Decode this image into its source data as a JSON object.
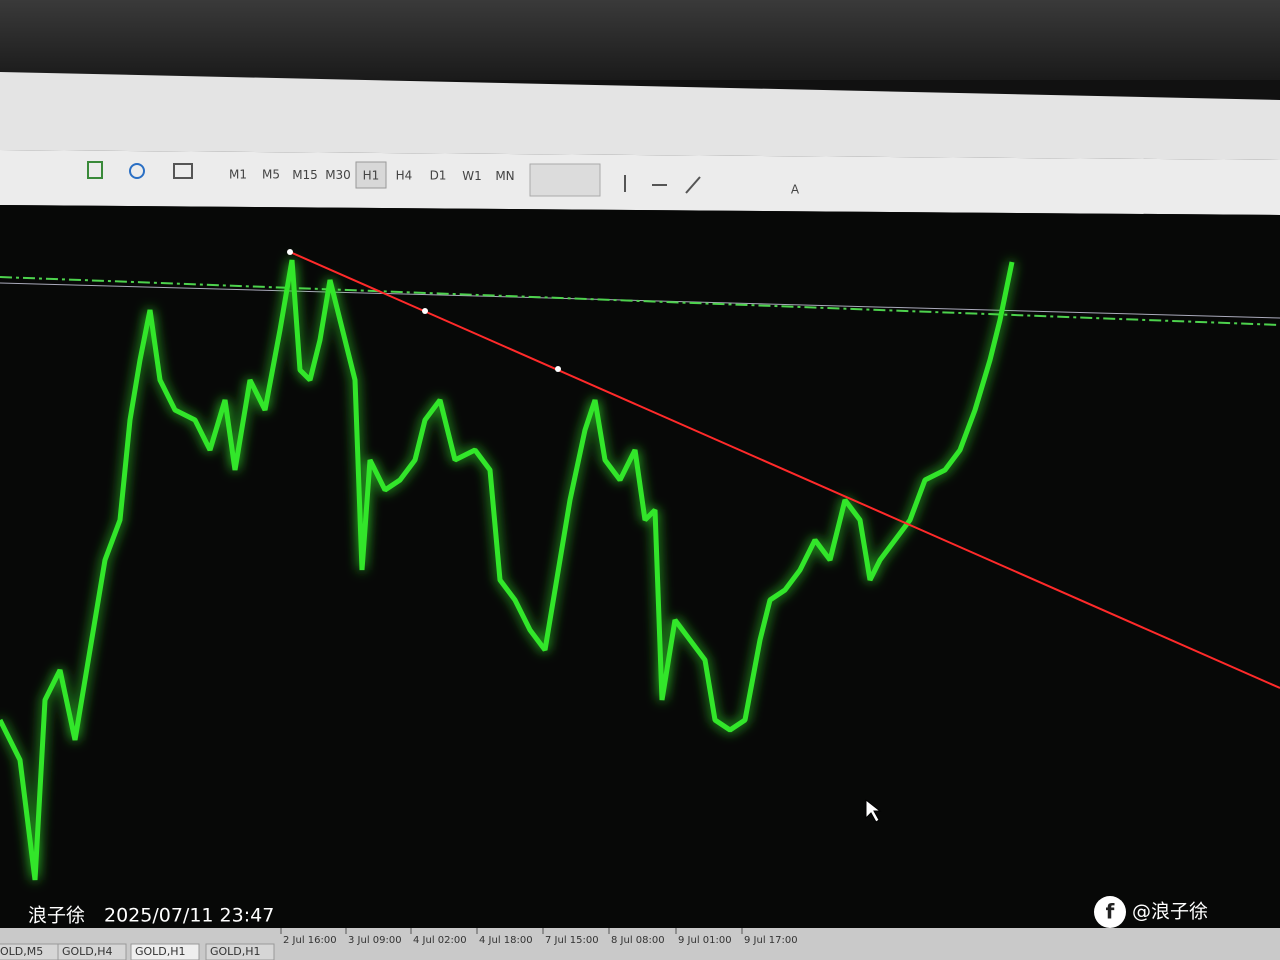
{
  "toolbar": {
    "timeframes": [
      "M1",
      "M5",
      "M15",
      "M30",
      "H1",
      "H4",
      "D1",
      "W1",
      "MN"
    ],
    "text_tool": "A"
  },
  "chart": {
    "time_labels": [
      "2 Jul 16:00",
      "3 Jul 09:00",
      "4 Jul 02:00",
      "4 Jul 18:00",
      "7 Jul 15:00",
      "8 Jul 08:00",
      "9 Jul 01:00",
      "9 Jul 17:00"
    ]
  },
  "tabs": [
    "OLD,M5",
    "GOLD,H4",
    "GOLD,H1",
    "GOLD,H1"
  ],
  "watermark": {
    "author": "浪子徐",
    "timestamp": "2025/07/11 23:47"
  },
  "credit": "@浪子徐"
}
